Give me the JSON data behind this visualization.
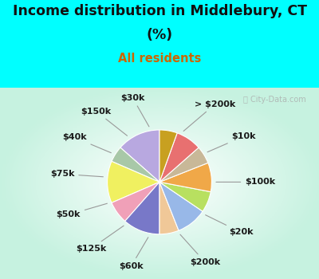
{
  "title_line1": "Income distribution in Middlebury, CT",
  "title_line2": "(%)",
  "subtitle": "All residents",
  "title_color": "#111111",
  "subtitle_color": "#cc6600",
  "bg_cyan": "#00ffff",
  "watermark": "ⓘ City-Data.com",
  "labels": [
    "> $200k",
    "$10k",
    "$100k",
    "$20k",
    "$200k",
    "$60k",
    "$125k",
    "$50k",
    "$75k",
    "$40k",
    "$150k",
    "$30k"
  ],
  "values": [
    13.5,
    5.0,
    13.0,
    7.0,
    11.5,
    6.0,
    9.5,
    6.5,
    9.0,
    5.5,
    8.0,
    5.5
  ],
  "colors": [
    "#b8a8e0",
    "#a8c8a8",
    "#f0f060",
    "#f0a0b8",
    "#7878c8",
    "#f0c898",
    "#98b8e8",
    "#b8e060",
    "#f0a848",
    "#c8b898",
    "#e87070",
    "#c8a020"
  ],
  "startangle": 90,
  "label_fontsize": 8,
  "title_fontsize": 12.5,
  "subtitle_fontsize": 10.5
}
